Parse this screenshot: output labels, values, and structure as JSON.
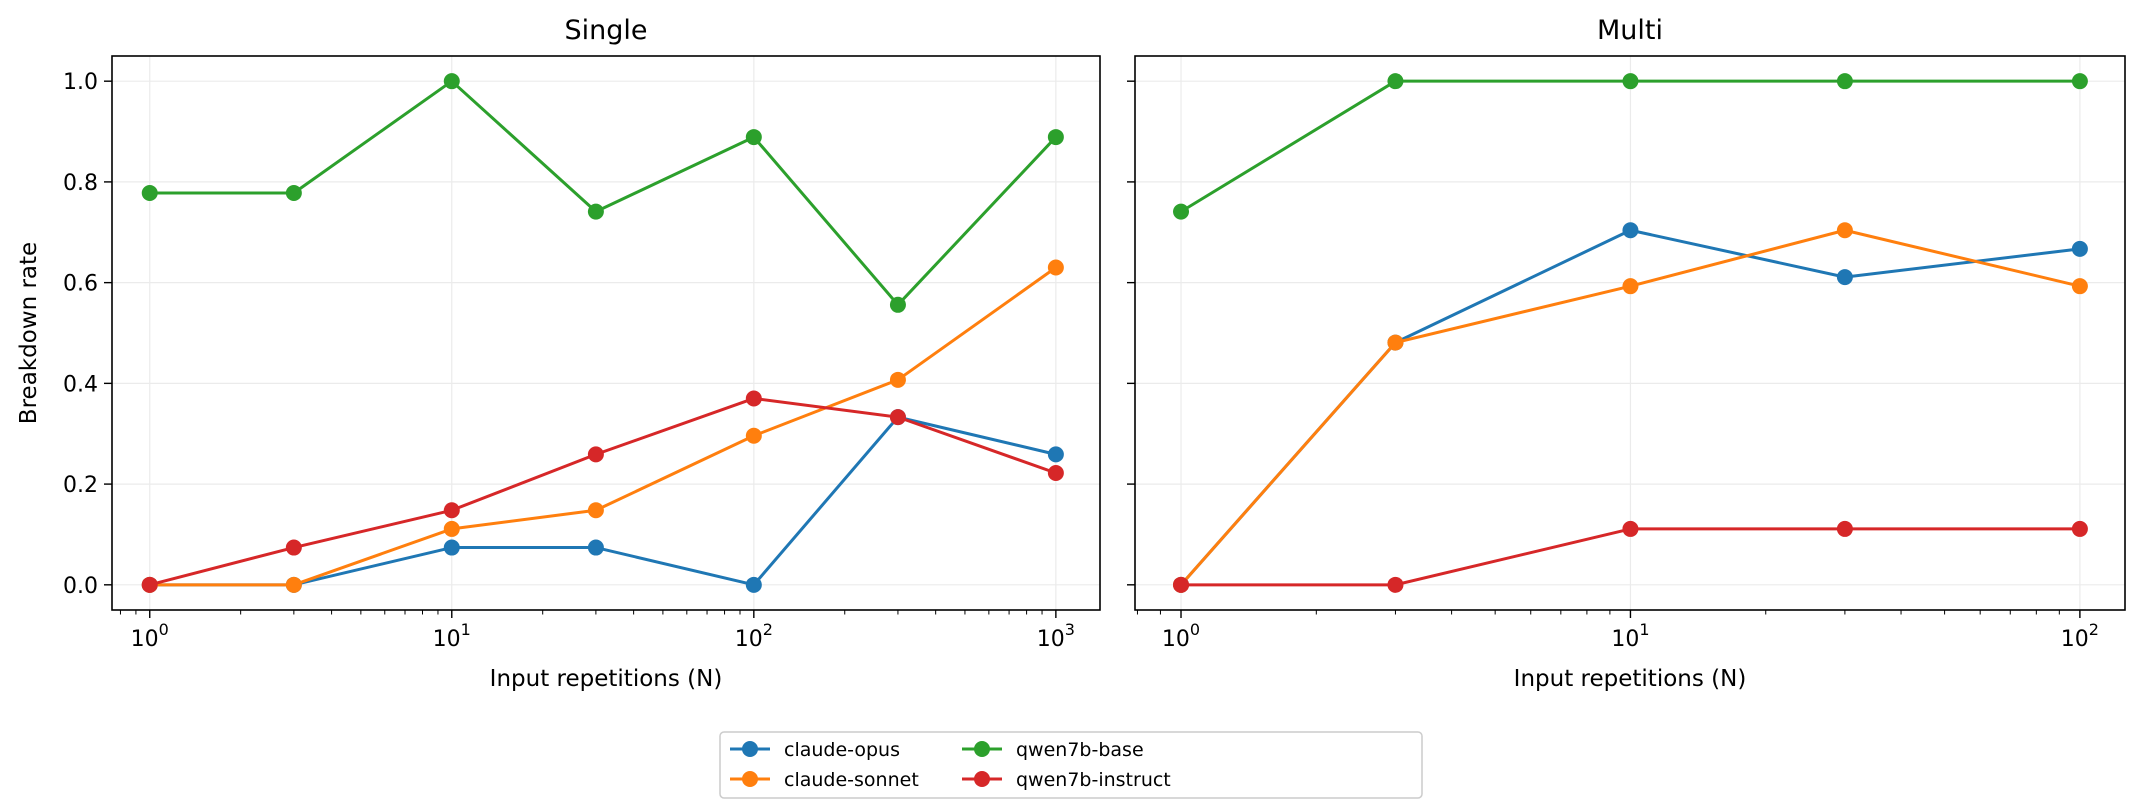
{
  "chart_data": [
    {
      "type": "line",
      "title": "Single",
      "xlabel": "Input repetitions (N)",
      "ylabel": "Breakdown rate",
      "xscale": "log",
      "xlim": [
        0.75,
        1400
      ],
      "ylim": [
        -0.05,
        1.05
      ],
      "grid": true,
      "x": [
        1,
        3,
        10,
        30,
        100,
        300,
        1000
      ],
      "xticks": [
        {
          "value": 1,
          "base": "10",
          "exp": "0"
        },
        {
          "value": 10,
          "base": "10",
          "exp": "1"
        },
        {
          "value": 100,
          "base": "10",
          "exp": "2"
        },
        {
          "value": 1000,
          "base": "10",
          "exp": "3"
        }
      ],
      "yticks": [
        {
          "value": 0.0,
          "label": "0.0"
        },
        {
          "value": 0.2,
          "label": "0.2"
        },
        {
          "value": 0.4,
          "label": "0.4"
        },
        {
          "value": 0.6,
          "label": "0.6"
        },
        {
          "value": 0.8,
          "label": "0.8"
        },
        {
          "value": 1.0,
          "label": "1.0"
        }
      ],
      "series": [
        {
          "name": "claude-opus",
          "color": "#1f77b4",
          "values": [
            0.0,
            0.0,
            0.074,
            0.074,
            0.0,
            0.333,
            0.259
          ]
        },
        {
          "name": "claude-sonnet",
          "color": "#ff7f0e",
          "values": [
            0.0,
            0.0,
            0.111,
            0.148,
            0.296,
            0.407,
            0.63
          ]
        },
        {
          "name": "qwen7b-base",
          "color": "#2ca02c",
          "values": [
            0.778,
            0.778,
            1.0,
            0.741,
            0.889,
            0.556,
            0.889
          ]
        },
        {
          "name": "qwen7b-instruct",
          "color": "#d62728",
          "values": [
            0.0,
            0.074,
            0.148,
            0.259,
            0.37,
            0.333,
            0.222
          ]
        }
      ]
    },
    {
      "type": "line",
      "title": "Multi",
      "xlabel": "Input repetitions (N)",
      "ylabel": "",
      "xscale": "log",
      "xlim": [
        0.79,
        126
      ],
      "ylim": [
        -0.05,
        1.05
      ],
      "grid": true,
      "x": [
        1,
        3,
        10,
        30,
        100
      ],
      "xticks": [
        {
          "value": 1,
          "base": "10",
          "exp": "0"
        },
        {
          "value": 10,
          "base": "10",
          "exp": "1"
        },
        {
          "value": 100,
          "base": "10",
          "exp": "2"
        }
      ],
      "yticks": [
        {
          "value": 0.0,
          "label": ""
        },
        {
          "value": 0.2,
          "label": ""
        },
        {
          "value": 0.4,
          "label": ""
        },
        {
          "value": 0.6,
          "label": ""
        },
        {
          "value": 0.8,
          "label": ""
        },
        {
          "value": 1.0,
          "label": ""
        }
      ],
      "series": [
        {
          "name": "claude-opus",
          "color": "#1f77b4",
          "values": [
            0.0,
            0.481,
            0.704,
            0.611,
            0.667
          ]
        },
        {
          "name": "claude-sonnet",
          "color": "#ff7f0e",
          "values": [
            0.0,
            0.481,
            0.593,
            0.704,
            0.593
          ]
        },
        {
          "name": "qwen7b-base",
          "color": "#2ca02c",
          "values": [
            0.741,
            1.0,
            1.0,
            1.0,
            1.0
          ]
        },
        {
          "name": "qwen7b-instruct",
          "color": "#d62728",
          "values": [
            0.0,
            0.0,
            0.111,
            0.111,
            0.111
          ]
        }
      ]
    }
  ],
  "legend": {
    "placement": "bottom-center",
    "columns": 3,
    "entries": [
      {
        "name": "claude-opus",
        "color": "#1f77b4"
      },
      {
        "name": "claude-sonnet",
        "color": "#ff7f0e"
      },
      {
        "name": "qwen7b-base",
        "color": "#2ca02c"
      },
      {
        "name": "qwen7b-instruct",
        "color": "#d62728"
      }
    ]
  }
}
